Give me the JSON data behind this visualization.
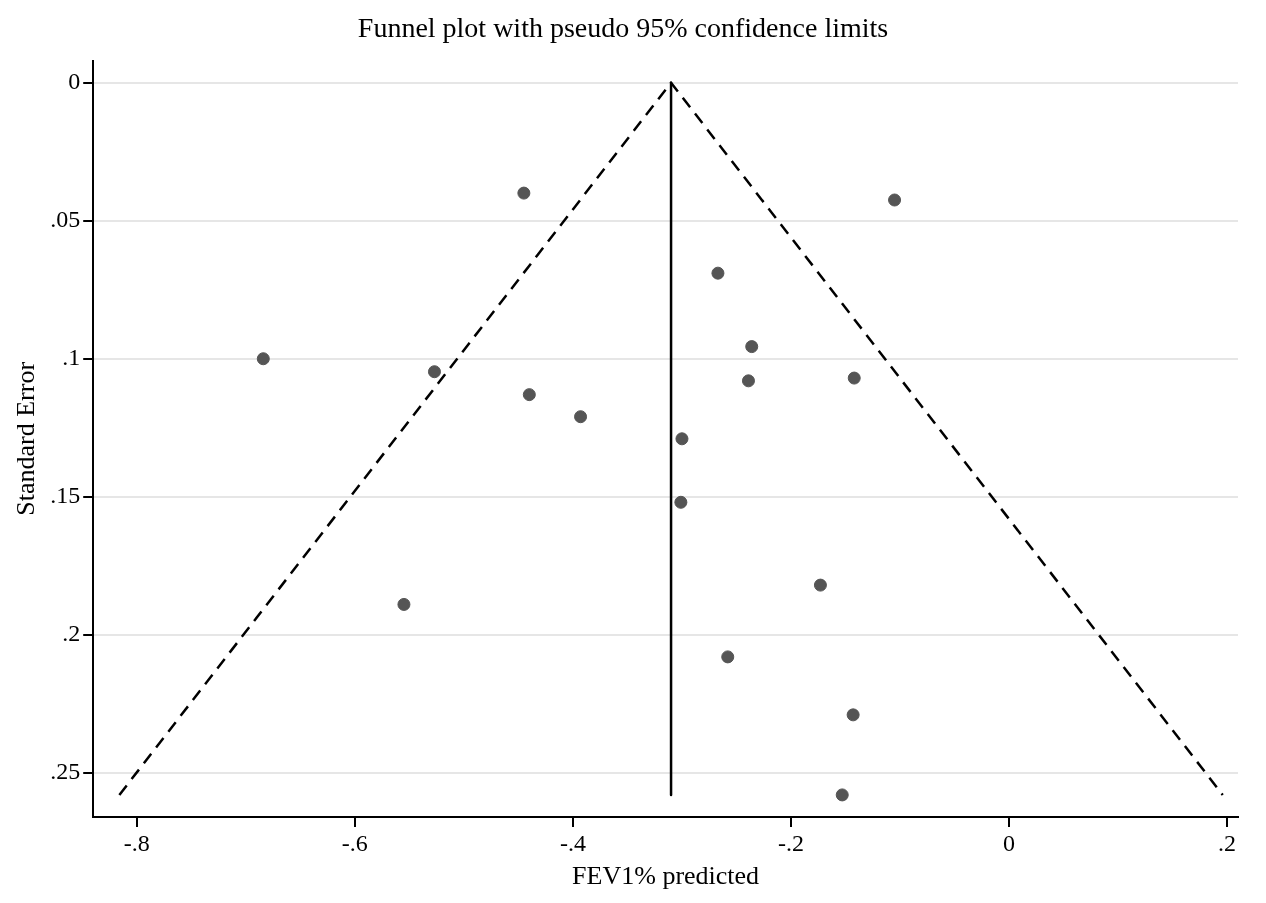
{
  "chart_data": {
    "type": "scatter",
    "title": "Funnel plot with pseudo 95% confidence limits",
    "xlabel": "FEV1% predicted",
    "ylabel": "Standard Error",
    "xlim": [
      -0.84,
      0.21
    ],
    "ylim": [
      0.266,
      -0.008
    ],
    "xticks": [
      {
        "value": -0.8,
        "label": "-.8"
      },
      {
        "value": -0.6,
        "label": "-.6"
      },
      {
        "value": -0.4,
        "label": "-.4"
      },
      {
        "value": -0.2,
        "label": "-.2"
      },
      0,
      {
        "value": 0.2,
        "label": ".2"
      }
    ],
    "yticks": [
      0,
      {
        "value": 0.05,
        "label": ".05"
      },
      {
        "value": 0.1,
        "label": ".1"
      },
      {
        "value": 0.15,
        "label": ".15"
      },
      {
        "value": 0.2,
        "label": ".2"
      },
      {
        "value": 0.25,
        "label": ".25"
      }
    ],
    "grid": "y",
    "legend": false,
    "series": [
      {
        "type": "scatter",
        "marker": "circle",
        "color": "#555555",
        "x": [
          -0.445,
          -0.105,
          -0.267,
          -0.684,
          -0.236,
          -0.527,
          -0.239,
          -0.142,
          -0.44,
          -0.393,
          -0.3,
          -0.301,
          -0.173,
          -0.555,
          -0.258,
          -0.143,
          -0.153
        ],
        "values": [
          0.04,
          0.0425,
          0.069,
          0.1,
          0.0956,
          0.1047,
          0.108,
          0.107,
          0.113,
          0.121,
          0.129,
          0.152,
          0.182,
          0.189,
          0.208,
          0.229,
          0.258
        ]
      },
      {
        "type": "line",
        "color": "#000000",
        "line_style": "dashed",
        "marker": "none",
        "x": [
          -0.816,
          -0.31,
          0.196
        ],
        "values": [
          0.258,
          0,
          0.258
        ]
      },
      {
        "type": "line",
        "color": "#000000",
        "line_style": "solid",
        "marker": "none",
        "x": [
          -0.31,
          -0.31
        ],
        "values": [
          0,
          0.258
        ]
      }
    ]
  }
}
